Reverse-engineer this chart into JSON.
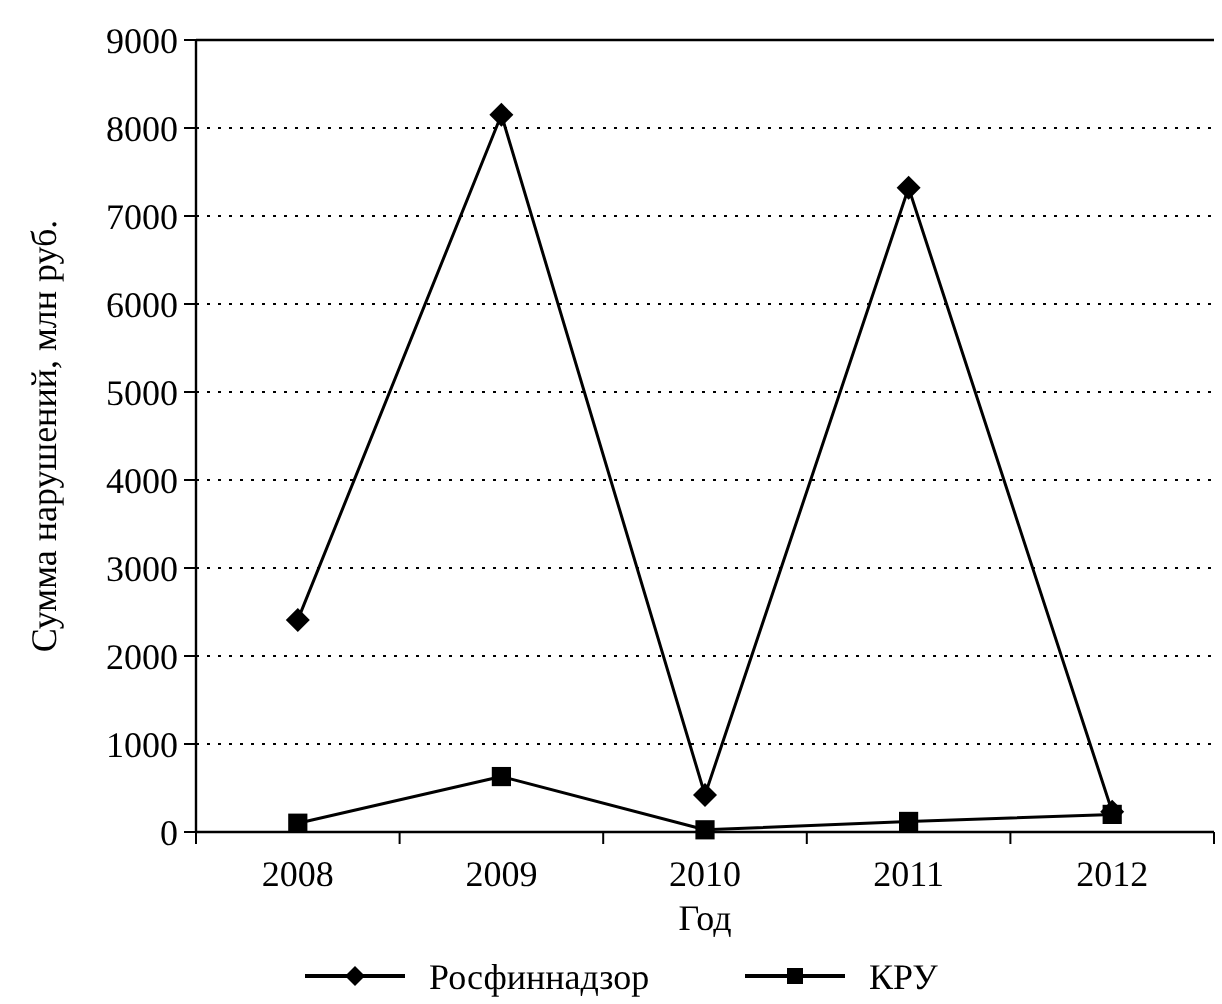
{
  "chart_data": {
    "type": "line",
    "xlabel": "Год",
    "ylabel": "Сумма нарушений, млн руб.",
    "categories": [
      "2008",
      "2009",
      "2010",
      "2011",
      "2012"
    ],
    "series": [
      {
        "name": "Росфиннадзор",
        "color": "#000000",
        "marker": "diamond",
        "values": [
          2410,
          8150,
          420,
          7320,
          230
        ]
      },
      {
        "name": "КРУ",
        "color": "#000000",
        "marker": "square",
        "values": [
          100,
          630,
          25,
          120,
          200
        ]
      }
    ],
    "ylim": [
      0,
      9000
    ],
    "yticks": [
      0,
      1000,
      2000,
      3000,
      4000,
      5000,
      6000,
      7000,
      8000,
      9000
    ],
    "grid": "y",
    "legend": "bottom",
    "line_style": "solid"
  }
}
